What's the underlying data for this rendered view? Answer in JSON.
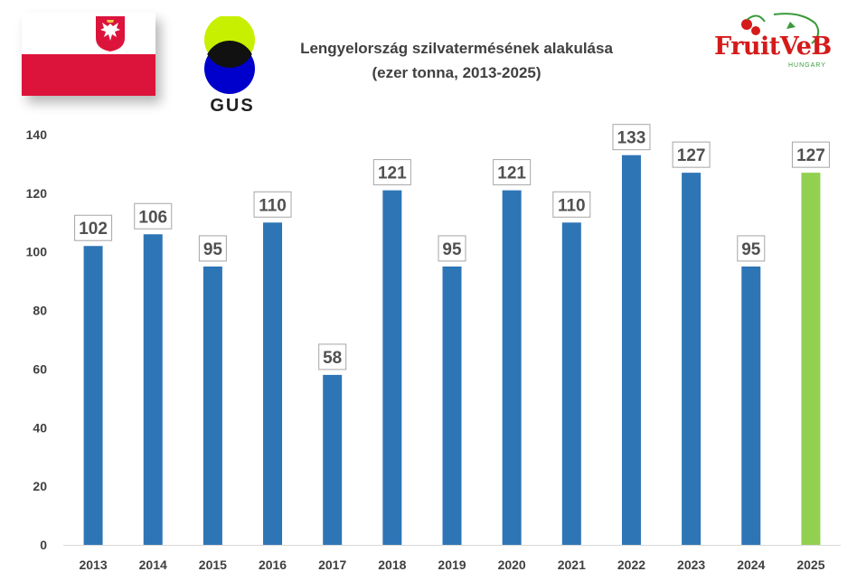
{
  "header": {
    "title_line1": "Lengyelország szilvatermésének alakulása",
    "title_line2": "(ezer tonna, 2013-2025)",
    "gus_label": "GUS",
    "brand_main": "FruitVeB",
    "brand_sub": "HUNGARY",
    "flag_icon": "poland-flag-icon",
    "gus_icon": "gus-logo-icon",
    "brand_icon": "fruitveb-logo-icon"
  },
  "colors": {
    "bar": "#2e75b6",
    "highlight_bar": "#92d050",
    "axis_text": "#404040",
    "label_text": "#505050"
  },
  "chart_data": {
    "type": "bar",
    "title": "Lengyelország szilvatermésének alakulása (ezer tonna, 2013-2025)",
    "xlabel": "",
    "ylabel": "",
    "categories": [
      "2013",
      "2014",
      "2015",
      "2016",
      "2017",
      "2018",
      "2019",
      "2020",
      "2021",
      "2022",
      "2023",
      "2024",
      "2025"
    ],
    "values": [
      102,
      106,
      95,
      110,
      58,
      121,
      95,
      121,
      110,
      133,
      127,
      95,
      127
    ],
    "highlight_index": 12,
    "ylim": [
      0,
      140
    ],
    "yticks": [
      0,
      20,
      40,
      60,
      80,
      100,
      120,
      140
    ],
    "grid": false,
    "legend": "none",
    "data_labels": true
  }
}
